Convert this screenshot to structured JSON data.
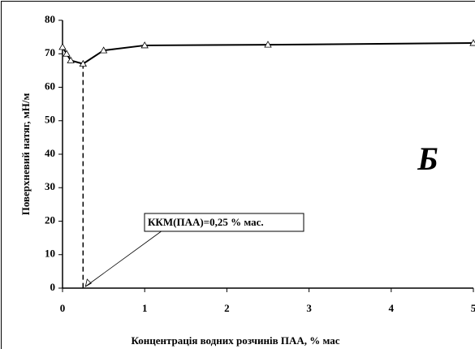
{
  "chart_data": {
    "type": "line",
    "x_label": "Концентрація водних розчинів ПАА, % мас",
    "y_label": "Поверхневий натяг, мН/м",
    "annotation": "ККМ(ПАА)=0,25 % мас.",
    "panel_label": "Б",
    "x": [
      0,
      0.05,
      0.1,
      0.25,
      0.5,
      1,
      2.5,
      5
    ],
    "series": [
      {
        "color": "#000000",
        "values": [
          72,
          70,
          68,
          67,
          71,
          72.5,
          72.7,
          73.2
        ]
      }
    ],
    "xlim": [
      0,
      5
    ],
    "xticks": [
      0,
      1,
      2,
      3,
      4,
      5
    ],
    "ylim": [
      0,
      80
    ],
    "yticks": [
      0,
      10,
      20,
      30,
      40,
      50,
      60,
      70,
      80
    ],
    "grid": false
  }
}
